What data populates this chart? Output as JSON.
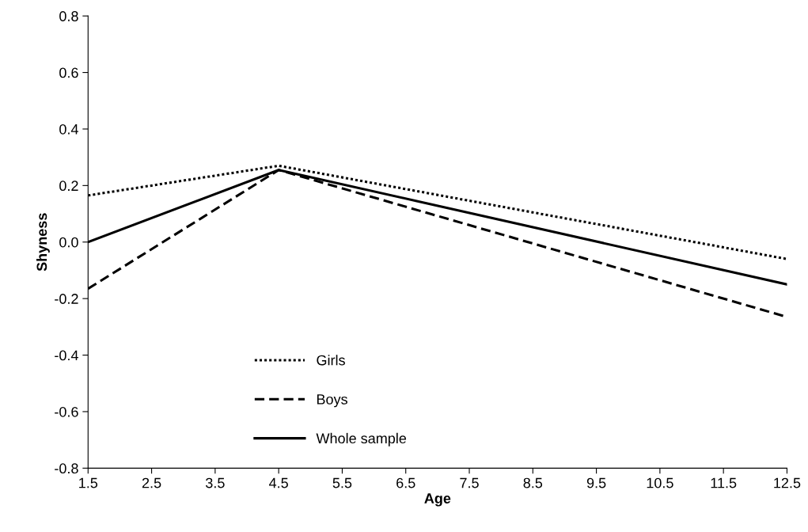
{
  "chart_data": {
    "type": "line",
    "xlabel": "Age",
    "ylabel": "Shyness",
    "x": [
      1.5,
      4.5,
      12.5
    ],
    "series": [
      {
        "name": "Girls",
        "color": "#000000",
        "line_style": "dotted",
        "values": [
          0.165,
          0.27,
          -0.06
        ]
      },
      {
        "name": "Boys",
        "color": "#000000",
        "line_style": "dashed",
        "values": [
          -0.165,
          0.255,
          -0.265
        ]
      },
      {
        "name": "Whole sample",
        "color": "#000000",
        "line_style": "solid",
        "values": [
          0.0,
          0.255,
          -0.15
        ]
      }
    ],
    "xlim": [
      1.5,
      12.5
    ],
    "xticks": [
      1.5,
      2.5,
      3.5,
      4.5,
      5.5,
      6.5,
      7.5,
      8.5,
      9.5,
      10.5,
      11.5,
      12.5
    ],
    "ylim": [
      -0.8,
      0.8
    ],
    "yticks": [
      {
        "value": -0.8,
        "label": "-0.8"
      },
      {
        "value": -0.6,
        "label": "-0.6"
      },
      {
        "value": -0.4,
        "label": "-0.4"
      },
      {
        "value": -0.2,
        "label": "-0.2"
      },
      {
        "value": 0.0,
        "label": "0.0"
      },
      {
        "value": 0.2,
        "label": "0.2"
      },
      {
        "value": 0.4,
        "label": "0.4"
      },
      {
        "value": 0.6,
        "label": "0.6"
      },
      {
        "value": 0.8,
        "label": "0.8"
      }
    ],
    "grid": false,
    "legend": "bottom",
    "marker": "none"
  }
}
